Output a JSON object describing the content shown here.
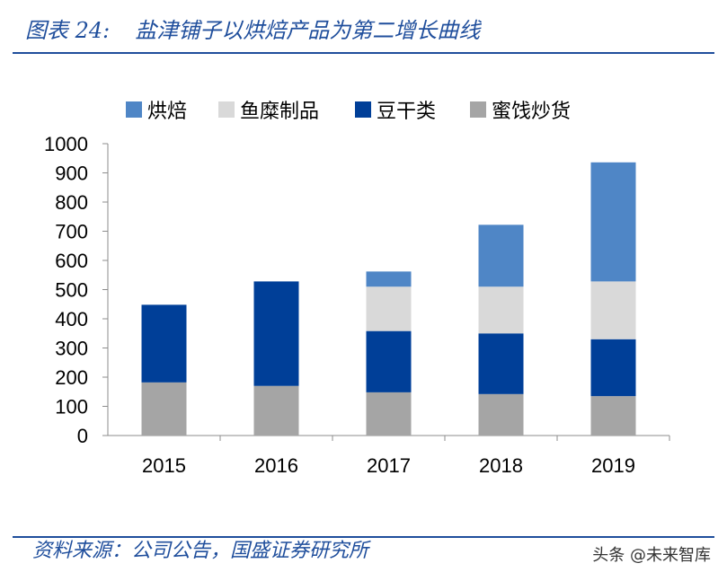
{
  "title": {
    "label": "图表 24:",
    "text": "盐津铺子以烘焙产品为第二增长曲线"
  },
  "source": "资料来源：公司公告，国盛证券研究所",
  "watermark": "头条 @未来智库",
  "chart_data": {
    "type": "bar",
    "stacked": true,
    "categories": [
      "2015",
      "2016",
      "2017",
      "2018",
      "2019"
    ],
    "series": [
      {
        "name": "蜜饯炒货",
        "color": "#a5a5a5",
        "values": [
          182,
          170,
          148,
          142,
          135
        ]
      },
      {
        "name": "豆干类",
        "color": "#003f98",
        "values": [
          266,
          358,
          210,
          208,
          195
        ]
      },
      {
        "name": "鱼糜制品",
        "color": "#d9d9d9",
        "values": [
          0,
          0,
          152,
          160,
          198
        ]
      },
      {
        "name": "烘焙",
        "color": "#4f86c6",
        "values": [
          0,
          0,
          52,
          212,
          408
        ]
      }
    ],
    "legend_order": [
      "烘焙",
      "鱼糜制品",
      "豆干类",
      "蜜饯炒货"
    ],
    "legend_position": "top",
    "ylim": [
      0,
      1000
    ],
    "yticks": [
      "0",
      "100",
      "200",
      "300",
      "400",
      "500",
      "600",
      "700",
      "800",
      "900",
      "1000"
    ],
    "grid": false,
    "title": "",
    "xlabel": "",
    "ylabel": ""
  }
}
